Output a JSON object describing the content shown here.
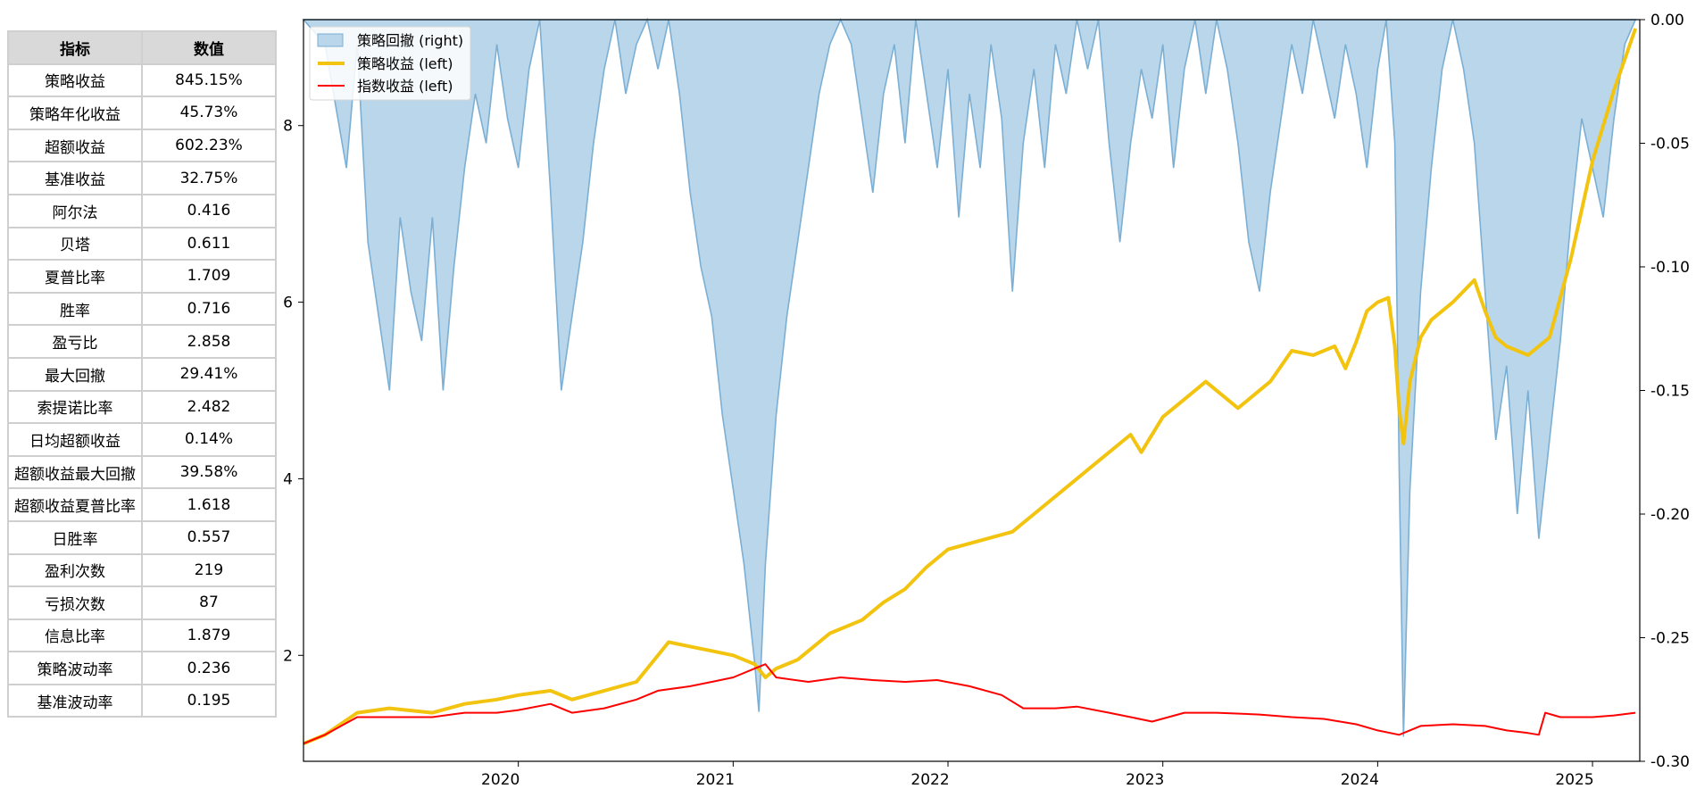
{
  "table": {
    "headers": [
      "指标",
      "数值"
    ],
    "rows": [
      [
        "策略收益",
        "845.15%"
      ],
      [
        "策略年化收益",
        "45.73%"
      ],
      [
        "超额收益",
        "602.23%"
      ],
      [
        "基准收益",
        "32.75%"
      ],
      [
        "阿尔法",
        "0.416"
      ],
      [
        "贝塔",
        "0.611"
      ],
      [
        "夏普比率",
        "1.709"
      ],
      [
        "胜率",
        "0.716"
      ],
      [
        "盈亏比",
        "2.858"
      ],
      [
        "最大回撤",
        "29.41%"
      ],
      [
        "索提诺比率",
        "2.482"
      ],
      [
        "日均超额收益",
        "0.14%"
      ],
      [
        "超额收益最大回撤",
        "39.58%"
      ],
      [
        "超额收益夏普比率",
        "1.618"
      ],
      [
        "日胜率",
        "0.557"
      ],
      [
        "盈利次数",
        "219"
      ],
      [
        "亏损次数",
        "87"
      ],
      [
        "信息比率",
        "1.879"
      ],
      [
        "策略波动率",
        "0.236"
      ],
      [
        "基准波动率",
        "0.195"
      ]
    ]
  },
  "chart_data": {
    "type": "line",
    "x_range": [
      2019.0,
      2025.22
    ],
    "left_axis": {
      "ticks": [
        2,
        4,
        6,
        8
      ],
      "range": [
        0.8,
        9.2
      ]
    },
    "right_axis": {
      "ticks": [
        "0.00",
        "-0.05",
        "-0.10",
        "-0.15",
        "-0.20",
        "-0.25",
        "-0.30"
      ],
      "range": [
        -0.3,
        0.0
      ]
    },
    "x_ticks": [
      "2020",
      "2021",
      "2022",
      "2023",
      "2024",
      "2025"
    ],
    "grid": false,
    "legend_placement": "top-left",
    "series": [
      {
        "name": "策略回撤 (right)",
        "kind": "area",
        "axis": "right",
        "color": "#7bafd4",
        "fill": "#bad6ea",
        "points": [
          [
            2019.0,
            0
          ],
          [
            2019.1,
            -0.01
          ],
          [
            2019.2,
            -0.06
          ],
          [
            2019.25,
            -0.01
          ],
          [
            2019.3,
            -0.09
          ],
          [
            2019.35,
            -0.12
          ],
          [
            2019.4,
            -0.15
          ],
          [
            2019.45,
            -0.08
          ],
          [
            2019.5,
            -0.11
          ],
          [
            2019.55,
            -0.13
          ],
          [
            2019.6,
            -0.08
          ],
          [
            2019.65,
            -0.15
          ],
          [
            2019.7,
            -0.1
          ],
          [
            2019.75,
            -0.06
          ],
          [
            2019.8,
            -0.03
          ],
          [
            2019.85,
            -0.05
          ],
          [
            2019.9,
            -0.01
          ],
          [
            2019.95,
            -0.04
          ],
          [
            2020.0,
            -0.06
          ],
          [
            2020.05,
            -0.02
          ],
          [
            2020.1,
            0
          ],
          [
            2020.15,
            -0.07
          ],
          [
            2020.2,
            -0.15
          ],
          [
            2020.25,
            -0.12
          ],
          [
            2020.3,
            -0.09
          ],
          [
            2020.35,
            -0.05
          ],
          [
            2020.4,
            -0.02
          ],
          [
            2020.45,
            0
          ],
          [
            2020.5,
            -0.03
          ],
          [
            2020.55,
            -0.01
          ],
          [
            2020.6,
            0
          ],
          [
            2020.65,
            -0.02
          ],
          [
            2020.7,
            0
          ],
          [
            2020.75,
            -0.03
          ],
          [
            2020.8,
            -0.07
          ],
          [
            2020.85,
            -0.1
          ],
          [
            2020.9,
            -0.12
          ],
          [
            2020.95,
            -0.16
          ],
          [
            2021.0,
            -0.19
          ],
          [
            2021.05,
            -0.22
          ],
          [
            2021.1,
            -0.26
          ],
          [
            2021.12,
            -0.28
          ],
          [
            2021.15,
            -0.22
          ],
          [
            2021.2,
            -0.16
          ],
          [
            2021.25,
            -0.12
          ],
          [
            2021.3,
            -0.09
          ],
          [
            2021.35,
            -0.06
          ],
          [
            2021.4,
            -0.03
          ],
          [
            2021.45,
            -0.01
          ],
          [
            2021.5,
            0
          ],
          [
            2021.55,
            -0.01
          ],
          [
            2021.6,
            -0.04
          ],
          [
            2021.65,
            -0.07
          ],
          [
            2021.7,
            -0.03
          ],
          [
            2021.75,
            -0.01
          ],
          [
            2021.8,
            -0.05
          ],
          [
            2021.85,
            0
          ],
          [
            2021.9,
            -0.03
          ],
          [
            2021.95,
            -0.06
          ],
          [
            2022.0,
            -0.02
          ],
          [
            2022.05,
            -0.08
          ],
          [
            2022.1,
            -0.03
          ],
          [
            2022.15,
            -0.06
          ],
          [
            2022.2,
            -0.01
          ],
          [
            2022.25,
            -0.04
          ],
          [
            2022.3,
            -0.11
          ],
          [
            2022.35,
            -0.05
          ],
          [
            2022.4,
            -0.02
          ],
          [
            2022.45,
            -0.06
          ],
          [
            2022.5,
            -0.01
          ],
          [
            2022.55,
            -0.03
          ],
          [
            2022.6,
            0
          ],
          [
            2022.65,
            -0.02
          ],
          [
            2022.7,
            0
          ],
          [
            2022.75,
            -0.05
          ],
          [
            2022.8,
            -0.09
          ],
          [
            2022.85,
            -0.05
          ],
          [
            2022.9,
            -0.02
          ],
          [
            2022.95,
            -0.04
          ],
          [
            2023.0,
            -0.01
          ],
          [
            2023.05,
            -0.06
          ],
          [
            2023.1,
            -0.02
          ],
          [
            2023.15,
            0
          ],
          [
            2023.2,
            -0.03
          ],
          [
            2023.25,
            0
          ],
          [
            2023.3,
            -0.02
          ],
          [
            2023.35,
            -0.05
          ],
          [
            2023.4,
            -0.09
          ],
          [
            2023.45,
            -0.11
          ],
          [
            2023.5,
            -0.07
          ],
          [
            2023.55,
            -0.04
          ],
          [
            2023.6,
            -0.01
          ],
          [
            2023.65,
            -0.03
          ],
          [
            2023.7,
            0
          ],
          [
            2023.75,
            -0.02
          ],
          [
            2023.8,
            -0.04
          ],
          [
            2023.85,
            -0.01
          ],
          [
            2023.9,
            -0.03
          ],
          [
            2023.95,
            -0.06
          ],
          [
            2024.0,
            -0.02
          ],
          [
            2024.04,
            0
          ],
          [
            2024.08,
            -0.05
          ],
          [
            2024.1,
            -0.18
          ],
          [
            2024.12,
            -0.29
          ],
          [
            2024.15,
            -0.19
          ],
          [
            2024.2,
            -0.11
          ],
          [
            2024.25,
            -0.06
          ],
          [
            2024.3,
            -0.02
          ],
          [
            2024.35,
            0
          ],
          [
            2024.4,
            -0.02
          ],
          [
            2024.45,
            -0.05
          ],
          [
            2024.5,
            -0.11
          ],
          [
            2024.55,
            -0.17
          ],
          [
            2024.6,
            -0.14
          ],
          [
            2024.65,
            -0.2
          ],
          [
            2024.7,
            -0.15
          ],
          [
            2024.75,
            -0.21
          ],
          [
            2024.8,
            -0.17
          ],
          [
            2024.85,
            -0.13
          ],
          [
            2024.9,
            -0.08
          ],
          [
            2024.95,
            -0.04
          ],
          [
            2025.0,
            -0.06
          ],
          [
            2025.05,
            -0.08
          ],
          [
            2025.1,
            -0.04
          ],
          [
            2025.15,
            -0.01
          ],
          [
            2025.2,
            0
          ]
        ]
      },
      {
        "name": "策略收益 (left)",
        "kind": "line",
        "axis": "left",
        "color": "#f2c40f",
        "width": 4,
        "points": [
          [
            2019.0,
            1.0
          ],
          [
            2019.1,
            1.1
          ],
          [
            2019.25,
            1.35
          ],
          [
            2019.4,
            1.4
          ],
          [
            2019.6,
            1.35
          ],
          [
            2019.75,
            1.45
          ],
          [
            2019.9,
            1.5
          ],
          [
            2020.0,
            1.55
          ],
          [
            2020.15,
            1.6
          ],
          [
            2020.25,
            1.5
          ],
          [
            2020.4,
            1.6
          ],
          [
            2020.55,
            1.7
          ],
          [
            2020.65,
            2.0
          ],
          [
            2020.7,
            2.15
          ],
          [
            2020.8,
            2.1
          ],
          [
            2020.9,
            2.05
          ],
          [
            2021.0,
            2.0
          ],
          [
            2021.1,
            1.9
          ],
          [
            2021.15,
            1.75
          ],
          [
            2021.2,
            1.85
          ],
          [
            2021.3,
            1.95
          ],
          [
            2021.45,
            2.25
          ],
          [
            2021.6,
            2.4
          ],
          [
            2021.7,
            2.6
          ],
          [
            2021.8,
            2.75
          ],
          [
            2021.9,
            3.0
          ],
          [
            2022.0,
            3.2
          ],
          [
            2022.15,
            3.3
          ],
          [
            2022.3,
            3.4
          ],
          [
            2022.4,
            3.6
          ],
          [
            2022.55,
            3.9
          ],
          [
            2022.7,
            4.2
          ],
          [
            2022.85,
            4.5
          ],
          [
            2022.9,
            4.3
          ],
          [
            2023.0,
            4.7
          ],
          [
            2023.1,
            4.9
          ],
          [
            2023.2,
            5.1
          ],
          [
            2023.35,
            4.8
          ],
          [
            2023.5,
            5.1
          ],
          [
            2023.6,
            5.45
          ],
          [
            2023.7,
            5.4
          ],
          [
            2023.8,
            5.5
          ],
          [
            2023.85,
            5.25
          ],
          [
            2023.9,
            5.55
          ],
          [
            2023.95,
            5.9
          ],
          [
            2024.0,
            6.0
          ],
          [
            2024.05,
            6.05
          ],
          [
            2024.08,
            5.5
          ],
          [
            2024.1,
            4.8
          ],
          [
            2024.12,
            4.4
          ],
          [
            2024.15,
            5.1
          ],
          [
            2024.2,
            5.6
          ],
          [
            2024.25,
            5.8
          ],
          [
            2024.35,
            6.0
          ],
          [
            2024.45,
            6.25
          ],
          [
            2024.5,
            5.9
          ],
          [
            2024.55,
            5.6
          ],
          [
            2024.6,
            5.5
          ],
          [
            2024.7,
            5.4
          ],
          [
            2024.8,
            5.6
          ],
          [
            2024.9,
            6.5
          ],
          [
            2025.0,
            7.6
          ],
          [
            2025.1,
            8.4
          ],
          [
            2025.2,
            9.1
          ]
        ]
      },
      {
        "name": "指数收益 (left)",
        "kind": "line",
        "axis": "left",
        "color": "#ff0000",
        "width": 2,
        "points": [
          [
            2019.0,
            1.0
          ],
          [
            2019.1,
            1.1
          ],
          [
            2019.25,
            1.3
          ],
          [
            2019.4,
            1.3
          ],
          [
            2019.6,
            1.3
          ],
          [
            2019.75,
            1.35
          ],
          [
            2019.9,
            1.35
          ],
          [
            2020.0,
            1.38
          ],
          [
            2020.15,
            1.45
          ],
          [
            2020.25,
            1.35
          ],
          [
            2020.4,
            1.4
          ],
          [
            2020.55,
            1.5
          ],
          [
            2020.65,
            1.6
          ],
          [
            2020.8,
            1.65
          ],
          [
            2020.9,
            1.7
          ],
          [
            2021.0,
            1.75
          ],
          [
            2021.1,
            1.85
          ],
          [
            2021.15,
            1.9
          ],
          [
            2021.2,
            1.75
          ],
          [
            2021.35,
            1.7
          ],
          [
            2021.5,
            1.75
          ],
          [
            2021.65,
            1.72
          ],
          [
            2021.8,
            1.7
          ],
          [
            2021.95,
            1.72
          ],
          [
            2022.1,
            1.65
          ],
          [
            2022.25,
            1.55
          ],
          [
            2022.35,
            1.4
          ],
          [
            2022.5,
            1.4
          ],
          [
            2022.6,
            1.42
          ],
          [
            2022.75,
            1.35
          ],
          [
            2022.85,
            1.3
          ],
          [
            2022.95,
            1.25
          ],
          [
            2023.1,
            1.35
          ],
          [
            2023.25,
            1.35
          ],
          [
            2023.45,
            1.33
          ],
          [
            2023.6,
            1.3
          ],
          [
            2023.75,
            1.28
          ],
          [
            2023.9,
            1.22
          ],
          [
            2024.0,
            1.15
          ],
          [
            2024.1,
            1.1
          ],
          [
            2024.2,
            1.2
          ],
          [
            2024.35,
            1.22
          ],
          [
            2024.5,
            1.2
          ],
          [
            2024.6,
            1.15
          ],
          [
            2024.7,
            1.12
          ],
          [
            2024.75,
            1.1
          ],
          [
            2024.78,
            1.35
          ],
          [
            2024.85,
            1.3
          ],
          [
            2025.0,
            1.3
          ],
          [
            2025.1,
            1.32
          ],
          [
            2025.2,
            1.35
          ]
        ]
      }
    ]
  }
}
